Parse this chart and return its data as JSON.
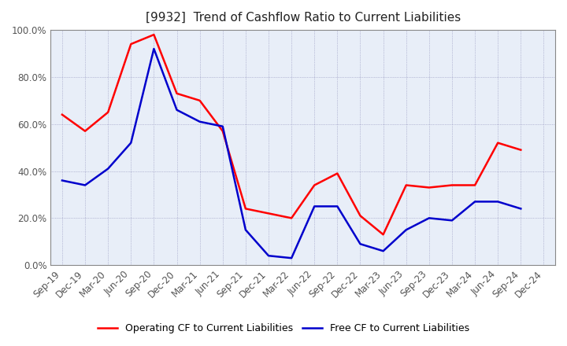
{
  "title": "[9932]  Trend of Cashflow Ratio to Current Liabilities",
  "x_labels": [
    "Sep-19",
    "Dec-19",
    "Mar-20",
    "Jun-20",
    "Sep-20",
    "Dec-20",
    "Mar-21",
    "Jun-21",
    "Sep-21",
    "Dec-21",
    "Mar-22",
    "Jun-22",
    "Sep-22",
    "Dec-22",
    "Mar-23",
    "Jun-23",
    "Sep-23",
    "Dec-23",
    "Mar-24",
    "Jun-24",
    "Sep-24",
    "Dec-24"
  ],
  "operating_cf": [
    0.64,
    0.57,
    0.65,
    0.94,
    0.98,
    0.73,
    0.7,
    0.57,
    0.24,
    0.22,
    0.2,
    0.34,
    0.39,
    0.21,
    0.13,
    0.34,
    0.33,
    0.34,
    0.34,
    0.52,
    0.49,
    null
  ],
  "free_cf": [
    0.36,
    0.34,
    0.41,
    0.52,
    0.92,
    0.66,
    0.61,
    0.59,
    0.15,
    0.04,
    0.03,
    0.25,
    0.25,
    0.09,
    0.06,
    0.15,
    0.2,
    0.19,
    0.27,
    0.27,
    0.24,
    null
  ],
  "operating_cf_color": "#ff0000",
  "free_cf_color": "#0000cc",
  "ylim": [
    0.0,
    1.0
  ],
  "yticks": [
    0.0,
    0.2,
    0.4,
    0.6,
    0.8,
    1.0
  ],
  "background_color": "#ffffff",
  "plot_bg_color": "#e8eef8",
  "grid_color": "#7777aa",
  "legend_op": "Operating CF to Current Liabilities",
  "legend_free": "Free CF to Current Liabilities",
  "title_fontsize": 11,
  "axis_fontsize": 8.5,
  "legend_fontsize": 9,
  "ytick_color": "#555555",
  "spine_color": "#888888"
}
